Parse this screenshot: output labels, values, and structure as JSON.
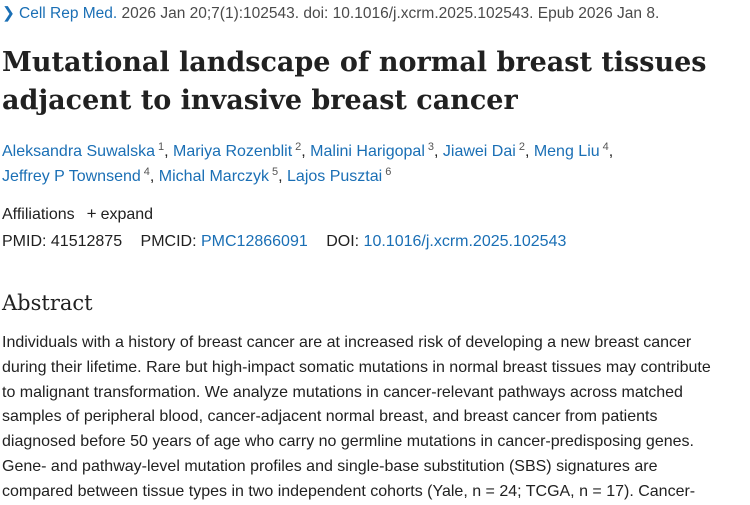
{
  "citation": {
    "journal": "Cell Rep Med.",
    "details": "2026 Jan 20;7(1):102543. doi: 10.1016/j.xcrm.2025.102543. Epub 2026 Jan 8."
  },
  "article": {
    "title_line1": "Mutational landscape of normal breast tissues",
    "title_line2": "adjacent to invasive breast cancer"
  },
  "authors": [
    {
      "name": "Aleksandra Suwalska",
      "aff": "1"
    },
    {
      "name": "Mariya Rozenblit",
      "aff": "2"
    },
    {
      "name": "Malini Harigopal",
      "aff": "3"
    },
    {
      "name": "Jiawei Dai",
      "aff": "2"
    },
    {
      "name": "Meng Liu",
      "aff": "4"
    },
    {
      "name": "Jeffrey P Townsend",
      "aff": "4"
    },
    {
      "name": "Michal Marczyk",
      "aff": "5"
    },
    {
      "name": "Lajos Pusztai",
      "aff": "6"
    }
  ],
  "affiliations": {
    "label": "Affiliations",
    "expand": "expand"
  },
  "ids": {
    "pmid_label": "PMID:",
    "pmid": "41512875",
    "pmcid_label": "PMCID:",
    "pmcid": "PMC12866091",
    "doi_label": "DOI:",
    "doi": "10.1016/j.xcrm.2025.102543"
  },
  "abstract": {
    "heading": "Abstract",
    "lines": [
      "Individuals with a history of breast cancer are at increased risk of developing a new breast cancer",
      "during their lifetime. Rare but high-impact somatic mutations in normal breast tissues may contribute",
      "to malignant transformation. We analyze mutations in cancer-relevant pathways across matched",
      "samples of peripheral blood, cancer-adjacent normal breast, and breast cancer from patients",
      "diagnosed before 50 years of age who carry no germline mutations in cancer-predisposing genes.",
      "Gene- and pathway-level mutation profiles and single-base substitution (SBS) signatures are",
      "compared between tissue types in two independent cohorts (Yale, n = 24; TCGA, n = 17). Cancer-"
    ]
  }
}
